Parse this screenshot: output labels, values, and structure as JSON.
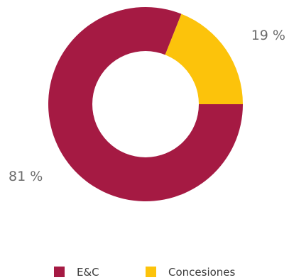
{
  "chart_data": {
    "type": "pie",
    "categories": [
      "E&C",
      "Concesiones"
    ],
    "values": [
      81,
      19
    ],
    "labels": [
      "81 %",
      "19 %"
    ],
    "colors": [
      "#a51a43",
      "#fcc30b"
    ],
    "legend": {
      "position": "bottom",
      "entries": [
        "E&C",
        "Concesiones"
      ]
    }
  }
}
